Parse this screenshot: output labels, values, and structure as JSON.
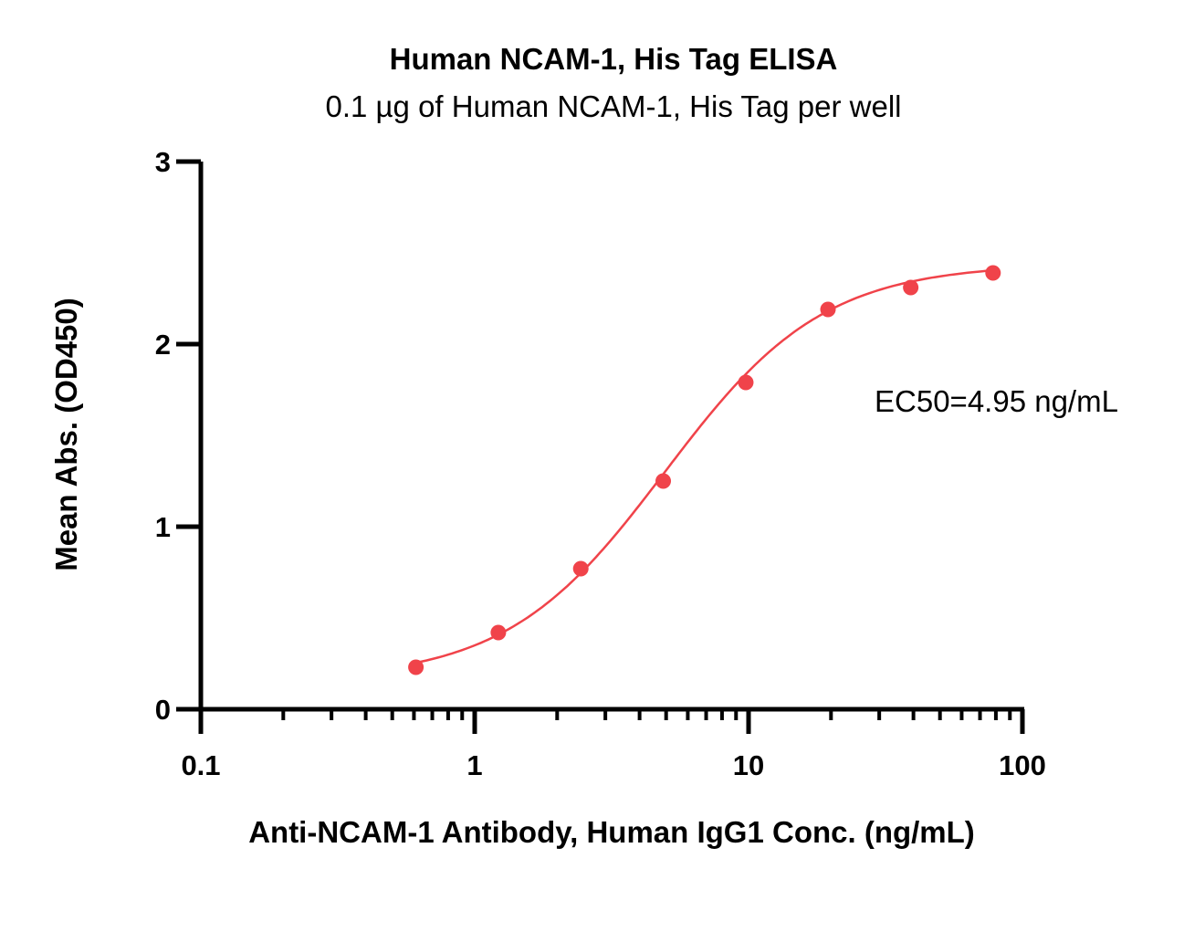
{
  "chart_data": {
    "type": "scatter",
    "title": "Human NCAM-1, His Tag ELISA",
    "subtitle": "0.1 µg of Human NCAM-1, His Tag per well",
    "xlabel": "Anti-NCAM-1 Antibody, Human IgG1 Conc. (ng/mL)",
    "ylabel": "Mean Abs. (OD450)",
    "x_scale": "log",
    "xlim": [
      0.1,
      100
    ],
    "ylim": [
      0,
      3
    ],
    "x_ticks": [
      "0.1",
      "1",
      "10",
      "100"
    ],
    "y_ticks": [
      "0",
      "1",
      "2",
      "3"
    ],
    "annotation": "EC50=4.95 ng/mL",
    "grid": false,
    "series": [
      {
        "color": "#f0434a",
        "x": [
          0.61,
          1.22,
          2.44,
          4.88,
          9.77,
          19.5,
          39.1,
          78.1
        ],
        "y": [
          0.23,
          0.42,
          0.77,
          1.25,
          1.79,
          2.19,
          2.31,
          2.39
        ],
        "fit": "4PL",
        "fit_params": {
          "bottom": 0.16,
          "top": 2.44,
          "ec50": 4.95,
          "hill": 1.5
        }
      }
    ]
  }
}
